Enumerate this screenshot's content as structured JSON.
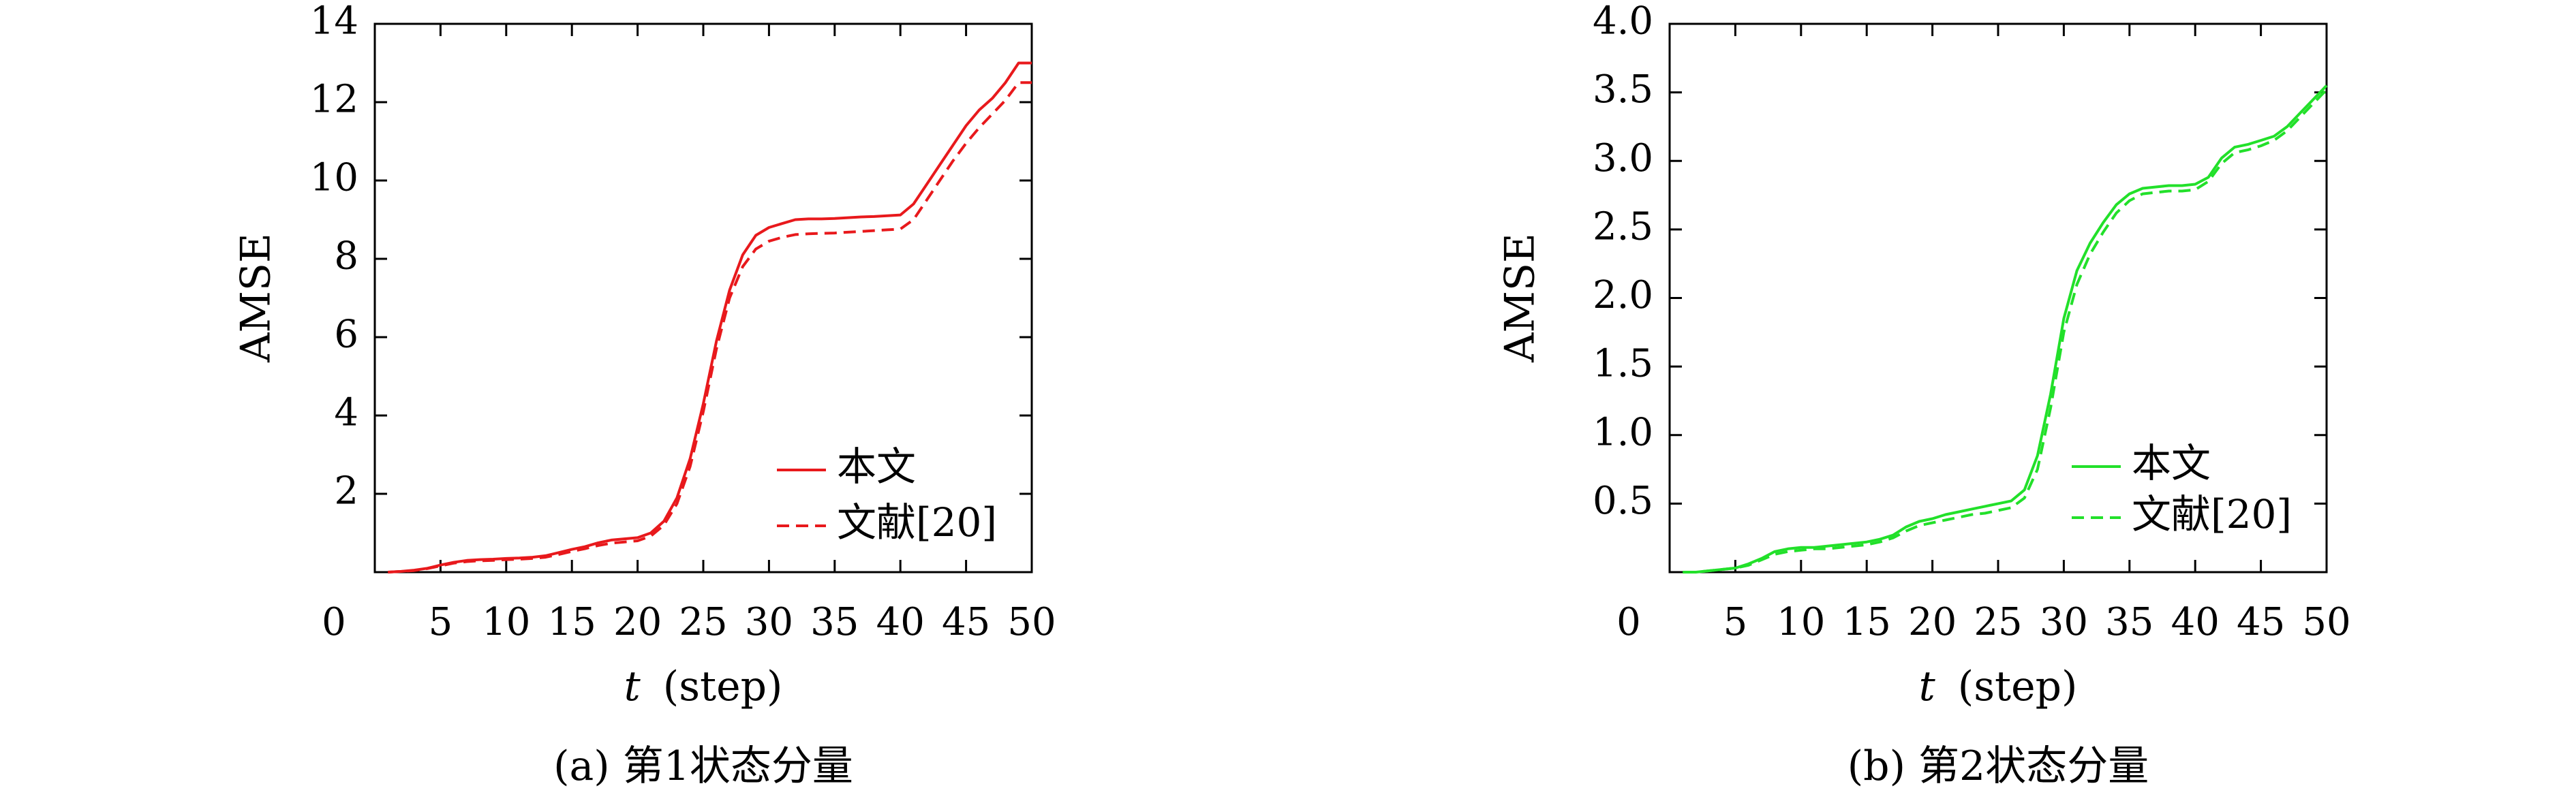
{
  "chart_data": [
    {
      "type": "line",
      "caption": "(a) 第1状态分量",
      "xlabel_var": "t",
      "xlabel_unit": "(step)",
      "ylabel": "AMSE",
      "xlim": [
        0,
        50
      ],
      "ylim": [
        0,
        14
      ],
      "x_ticks": [
        0,
        5,
        10,
        15,
        20,
        25,
        30,
        35,
        40,
        45,
        50
      ],
      "y_ticks": [
        2,
        4,
        6,
        8,
        10,
        12,
        14
      ],
      "grid": false,
      "legend_position": "bottom-right",
      "color": "#e8191c",
      "series": [
        {
          "name": "本文",
          "style": "solid",
          "x": [
            1,
            2,
            3,
            4,
            5,
            6,
            7,
            8,
            9,
            10,
            11,
            12,
            13,
            14,
            15,
            16,
            17,
            18,
            19,
            20,
            21,
            22,
            23,
            24,
            25,
            26,
            27,
            28,
            29,
            30,
            31,
            32,
            33,
            34,
            35,
            36,
            37,
            38,
            39,
            40,
            41,
            42,
            43,
            44,
            45,
            46,
            47,
            48,
            49,
            50
          ],
          "y": [
            0.0,
            0.02,
            0.05,
            0.1,
            0.18,
            0.25,
            0.3,
            0.32,
            0.33,
            0.35,
            0.36,
            0.38,
            0.42,
            0.5,
            0.58,
            0.65,
            0.75,
            0.82,
            0.85,
            0.88,
            1.0,
            1.3,
            1.9,
            2.9,
            4.3,
            5.9,
            7.2,
            8.1,
            8.6,
            8.8,
            8.9,
            9.0,
            9.02,
            9.02,
            9.03,
            9.05,
            9.07,
            9.08,
            9.1,
            9.12,
            9.4,
            9.9,
            10.4,
            10.9,
            11.4,
            11.8,
            12.1,
            12.5,
            13.0,
            13.0
          ]
        },
        {
          "name": "文献[20]",
          "style": "dashed",
          "x": [
            1,
            2,
            3,
            4,
            5,
            6,
            7,
            8,
            9,
            10,
            11,
            12,
            13,
            14,
            15,
            16,
            17,
            18,
            19,
            20,
            21,
            22,
            23,
            24,
            25,
            26,
            27,
            28,
            29,
            30,
            31,
            32,
            33,
            34,
            35,
            36,
            37,
            38,
            39,
            40,
            41,
            42,
            43,
            44,
            45,
            46,
            47,
            48,
            49,
            50
          ],
          "y": [
            0.0,
            0.02,
            0.04,
            0.09,
            0.16,
            0.23,
            0.27,
            0.29,
            0.3,
            0.32,
            0.33,
            0.35,
            0.38,
            0.45,
            0.53,
            0.6,
            0.68,
            0.74,
            0.77,
            0.8,
            0.92,
            1.2,
            1.75,
            2.7,
            4.1,
            5.7,
            7.0,
            7.8,
            8.25,
            8.45,
            8.55,
            8.62,
            8.64,
            8.65,
            8.66,
            8.68,
            8.7,
            8.72,
            8.74,
            8.76,
            9.0,
            9.5,
            10.0,
            10.5,
            10.95,
            11.35,
            11.7,
            12.05,
            12.5,
            12.5
          ]
        }
      ]
    },
    {
      "type": "line",
      "caption": "(b) 第2状态分量",
      "xlabel_var": "t",
      "xlabel_unit": "(step)",
      "ylabel": "AMSE",
      "xlim": [
        0,
        50
      ],
      "ylim": [
        0,
        4
      ],
      "x_ticks": [
        0,
        5,
        10,
        15,
        20,
        25,
        30,
        35,
        40,
        45,
        50
      ],
      "y_ticks": [
        "0.5",
        "1.0",
        "1.5",
        "2.0",
        "2.5",
        "3.0",
        "3.5",
        "4.0"
      ],
      "grid": false,
      "legend_position": "bottom-right",
      "color": "#22e02a",
      "series": [
        {
          "name": "本文",
          "style": "solid",
          "x": [
            1,
            2,
            3,
            4,
            5,
            6,
            7,
            8,
            9,
            10,
            11,
            12,
            13,
            14,
            15,
            16,
            17,
            18,
            19,
            20,
            21,
            22,
            23,
            24,
            25,
            26,
            27,
            28,
            29,
            30,
            31,
            32,
            33,
            34,
            35,
            36,
            37,
            38,
            39,
            40,
            41,
            42,
            43,
            44,
            45,
            46,
            47,
            48,
            49,
            50
          ],
          "y": [
            0.0,
            0.0,
            0.01,
            0.02,
            0.03,
            0.06,
            0.1,
            0.15,
            0.17,
            0.18,
            0.18,
            0.19,
            0.2,
            0.21,
            0.22,
            0.24,
            0.27,
            0.33,
            0.37,
            0.39,
            0.42,
            0.44,
            0.46,
            0.48,
            0.5,
            0.52,
            0.6,
            0.85,
            1.3,
            1.85,
            2.2,
            2.4,
            2.55,
            2.68,
            2.76,
            2.8,
            2.81,
            2.82,
            2.82,
            2.83,
            2.88,
            3.02,
            3.1,
            3.12,
            3.15,
            3.18,
            3.25,
            3.35,
            3.45,
            3.55
          ]
        },
        {
          "name": "文献[20]",
          "style": "dashed",
          "x": [
            1,
            2,
            3,
            4,
            5,
            6,
            7,
            8,
            9,
            10,
            11,
            12,
            13,
            14,
            15,
            16,
            17,
            18,
            19,
            20,
            21,
            22,
            23,
            24,
            25,
            26,
            27,
            28,
            29,
            30,
            31,
            32,
            33,
            34,
            35,
            36,
            37,
            38,
            39,
            40,
            41,
            42,
            43,
            44,
            45,
            46,
            47,
            48,
            49,
            50
          ],
          "y": [
            0.0,
            0.0,
            0.01,
            0.02,
            0.03,
            0.05,
            0.09,
            0.13,
            0.15,
            0.16,
            0.17,
            0.17,
            0.18,
            0.19,
            0.2,
            0.22,
            0.25,
            0.3,
            0.34,
            0.36,
            0.38,
            0.4,
            0.42,
            0.43,
            0.45,
            0.47,
            0.54,
            0.75,
            1.2,
            1.75,
            2.1,
            2.32,
            2.48,
            2.62,
            2.71,
            2.76,
            2.77,
            2.78,
            2.78,
            2.79,
            2.85,
            2.98,
            3.06,
            3.08,
            3.11,
            3.15,
            3.22,
            3.32,
            3.42,
            3.52
          ]
        }
      ]
    }
  ]
}
